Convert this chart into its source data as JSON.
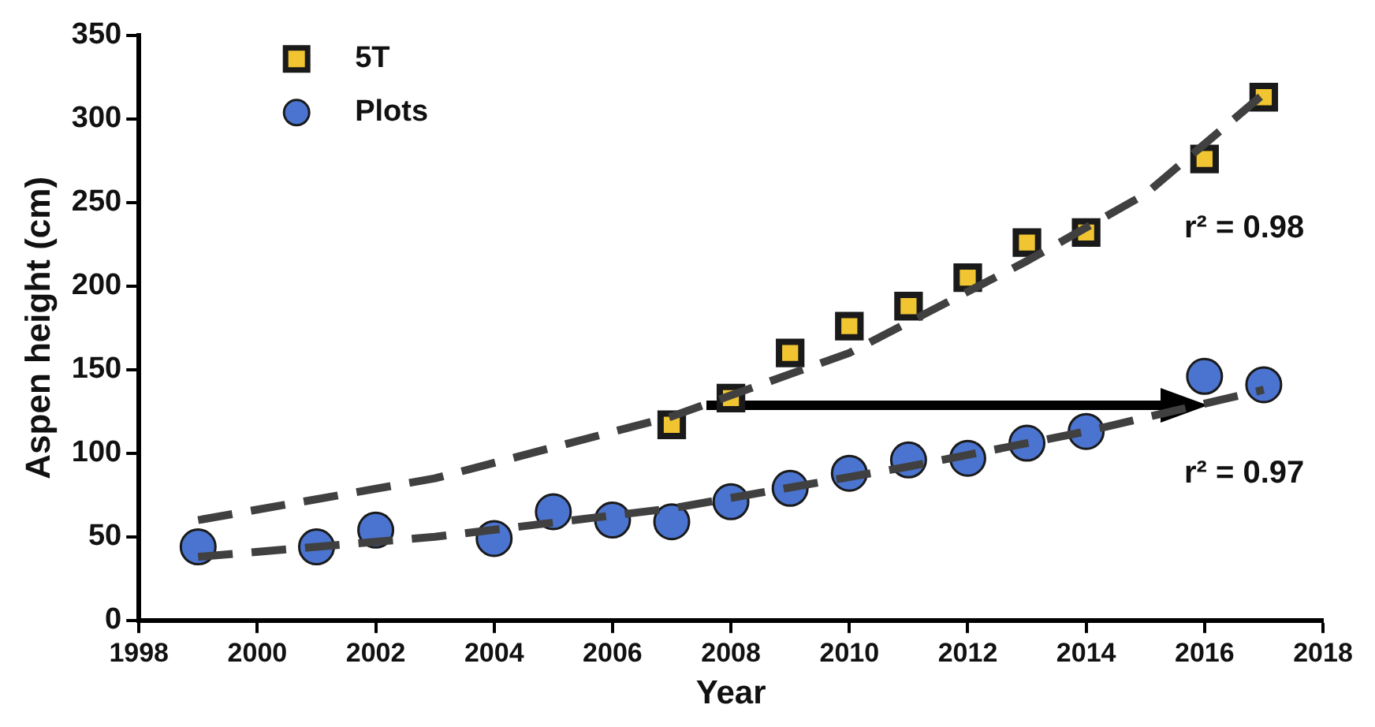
{
  "chart_data": {
    "type": "scatter",
    "xlabel": "Year",
    "ylabel": "Aspen height (cm)",
    "xlim": [
      1998,
      2018
    ],
    "xticks": [
      1998,
      2000,
      2002,
      2004,
      2006,
      2008,
      2010,
      2012,
      2014,
      2016,
      2018
    ],
    "ylim": [
      0,
      350
    ],
    "yticks": [
      0,
      50,
      100,
      150,
      200,
      250,
      300,
      350
    ],
    "grid": false,
    "legend": "top left",
    "series": [
      {
        "name": "5T",
        "color": "#f0c531",
        "marker": "square",
        "x": [
          2007,
          2008,
          2009,
          2010,
          2011,
          2012,
          2013,
          2014,
          2016,
          2017
        ],
        "values": [
          117,
          133,
          160,
          176,
          188,
          205,
          226,
          232,
          276,
          313
        ]
      },
      {
        "name": "Plots",
        "color": "#4a74cf",
        "marker": "circle",
        "x": [
          1999,
          2001,
          2002,
          2004,
          2005,
          2006,
          2007,
          2008,
          2009,
          2010,
          2011,
          2012,
          2013,
          2014,
          2016,
          2017
        ],
        "values": [
          44,
          44,
          54,
          49,
          65,
          60,
          59,
          71,
          79,
          88,
          96,
          97,
          106,
          113,
          146,
          141
        ]
      },
      {
        "type": "line",
        "color": "#404040",
        "marker": "none",
        "line_style": "dashed",
        "x": [
          1999,
          2003,
          2007,
          2010,
          2013,
          2015,
          2017
        ],
        "values": [
          60,
          85,
          122,
          160,
          215,
          255,
          315
        ]
      },
      {
        "type": "line",
        "color": "#404040",
        "marker": "none",
        "line_style": "dashed",
        "x": [
          1999,
          2003,
          2007,
          2011,
          2014,
          2017
        ],
        "values": [
          38,
          50,
          67,
          92,
          113,
          138
        ]
      }
    ],
    "annotations": [
      "r² = 0.98",
      "r² = 0.97"
    ]
  }
}
